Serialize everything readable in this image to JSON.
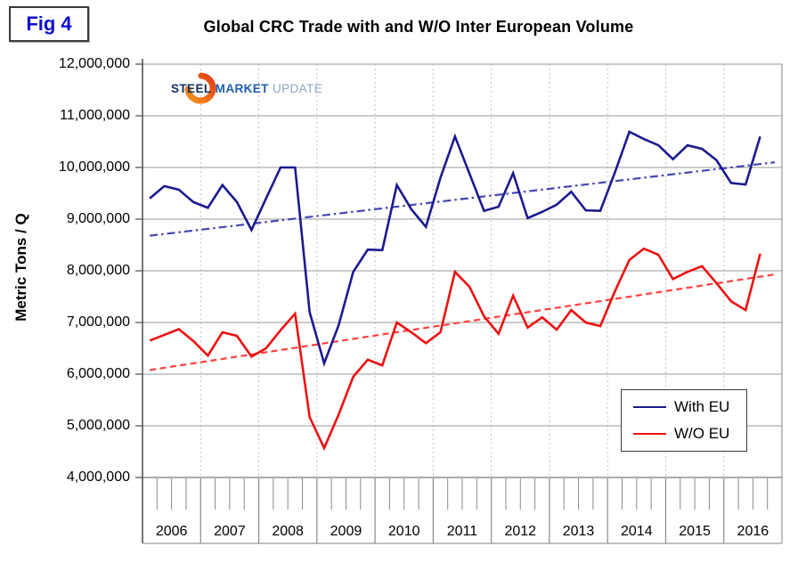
{
  "figure_label": "Fig 4",
  "title": "Global CRC Trade with and W/O Inter European Volume",
  "logo": {
    "word1": "STEEL",
    "word2": "MARKET",
    "word3": "UPDATE",
    "crescent_color_start": "#f7941d",
    "crescent_color_end": "#e23d12"
  },
  "y_axis": {
    "label": "Metric Tons / Q",
    "tick_labels": [
      "12,000,000",
      "11,000,000",
      "10,000,000",
      "9,000,000",
      "8,000,000",
      "7,000,000",
      "6,000,000",
      "5,000,000",
      "4,000,000"
    ]
  },
  "x_axis": {
    "years": [
      "2006",
      "2007",
      "2008",
      "2009",
      "2010",
      "2011",
      "2012",
      "2013",
      "2014",
      "2015",
      "2016"
    ]
  },
  "legend": {
    "entries": [
      "With EU",
      "W/O EU"
    ]
  },
  "chart_data": {
    "type": "line",
    "title": "Global CRC Trade with and W/O Inter European Volume",
    "xlabel": "",
    "ylabel": "Metric Tons / Q",
    "ylim": [
      4000000,
      12000000
    ],
    "y_tick_step": 1000000,
    "grid": "horizontal-solid, vertical-dotted-year-boundaries",
    "legend_position": "bottom-right",
    "x_unit": "quarter",
    "x_start": "2006 Q1",
    "x_end": "2016 Q3",
    "series": [
      {
        "name": "With EU",
        "color": "#1a1a8f",
        "style": "solid",
        "values": [
          9400000,
          9640000,
          9570000,
          9330000,
          9220000,
          9660000,
          9330000,
          8790000,
          9400000,
          10000000,
          10000000,
          7200000,
          6210000,
          6950000,
          7980000,
          8410000,
          8400000,
          9660000,
          9190000,
          8850000,
          9800000,
          10600000,
          9880000,
          9160000,
          9240000,
          9890000,
          9020000,
          9140000,
          9280000,
          9530000,
          9170000,
          9160000,
          9900000,
          10690000,
          10550000,
          10430000,
          10160000,
          10430000,
          10360000,
          10140000,
          9700000,
          9670000,
          10600000
        ]
      },
      {
        "name": "W/O EU",
        "color": "#ee1111",
        "style": "solid",
        "values": [
          6650000,
          6760000,
          6870000,
          6640000,
          6360000,
          6810000,
          6740000,
          6340000,
          6500000,
          6850000,
          7170000,
          5170000,
          4570000,
          5220000,
          5950000,
          6280000,
          6170000,
          7000000,
          6810000,
          6600000,
          6810000,
          7980000,
          7690000,
          7120000,
          6780000,
          7520000,
          6900000,
          7100000,
          6860000,
          7240000,
          7000000,
          6930000,
          7600000,
          8210000,
          8430000,
          8310000,
          7840000,
          7980000,
          8090000,
          7760000,
          7410000,
          7240000,
          8330000
        ]
      },
      {
        "name": "With EU linear trend",
        "color": "#4545b2",
        "style": "dashdot",
        "trend": {
          "start": 8680000,
          "end": 10100000
        }
      },
      {
        "name": "W/O EU linear trend",
        "color": "#ff4040",
        "style": "dashed",
        "trend": {
          "start": 6080000,
          "end": 7930000
        }
      }
    ]
  }
}
